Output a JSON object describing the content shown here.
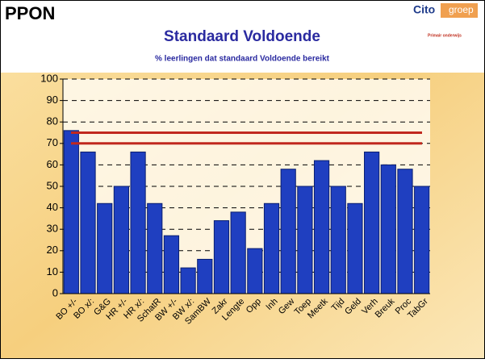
{
  "header": {
    "title": "PPON",
    "logo": {
      "brand": "Cito",
      "suffix": "groep",
      "tagline": "Primair onderwijs"
    }
  },
  "chart_data": {
    "type": "bar",
    "title": "Standaard Voldoende",
    "subtitle": "% leerlingen dat standaard Voldoende bereikt",
    "categories": [
      "BO +/-",
      "BO x/:",
      "G&G",
      "HR +/-",
      "HR x/:",
      "SchatR",
      "BW +/-",
      "BW x/:",
      "SamBW",
      "Zakr",
      "Lengte",
      "Opp",
      "Inh",
      "Gew",
      "Toep",
      "Meetk",
      "Tijd",
      "Geld",
      "Verh",
      "Breuk",
      "Proc",
      "TabGr"
    ],
    "values": [
      76,
      66,
      42,
      50,
      66,
      42,
      27,
      12,
      16,
      34,
      38,
      21,
      42,
      58,
      50,
      62,
      50,
      42,
      66,
      60,
      58,
      50
    ],
    "color": "#1f3fc0",
    "reference_lines": [
      75,
      70
    ],
    "reference_color": "#c0281e",
    "ylim": [
      0,
      100
    ],
    "yticks": [
      0,
      10,
      20,
      30,
      40,
      50,
      60,
      70,
      80,
      90,
      100
    ],
    "grid": true
  }
}
